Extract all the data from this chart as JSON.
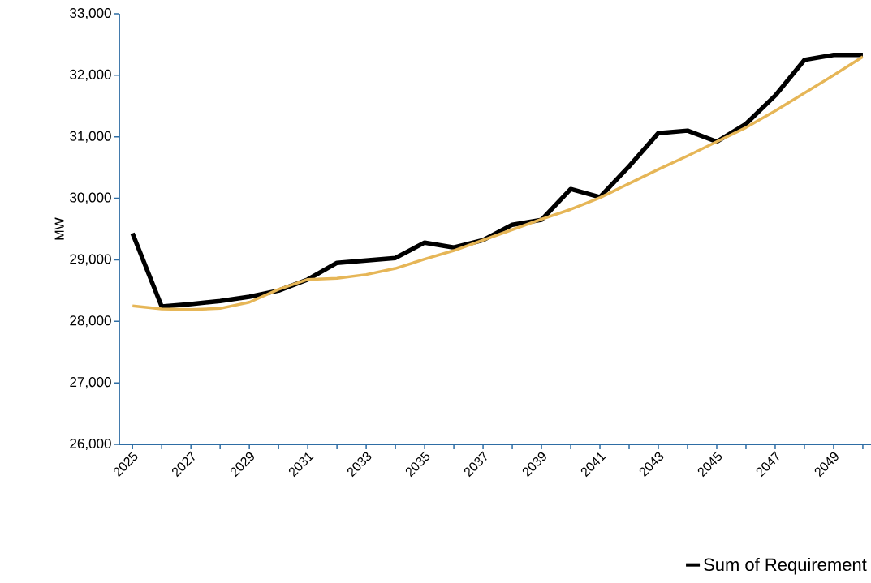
{
  "chart_data": {
    "type": "line",
    "ylabel": "MW",
    "categories": [
      "2025",
      null,
      "2027",
      null,
      "2029",
      null,
      "2031",
      null,
      "2033",
      null,
      "2035",
      null,
      "2037",
      null,
      "2039",
      null,
      "2041",
      null,
      "2043",
      null,
      "2045",
      null,
      "2047",
      null,
      "2049",
      null
    ],
    "ylim": [
      26000,
      33000
    ],
    "yticks": [
      {
        "value": 26000,
        "label": "26,000"
      },
      {
        "value": 27000,
        "label": "27,000"
      },
      {
        "value": 28000,
        "label": "28,000"
      },
      {
        "value": 29000,
        "label": "29,000"
      },
      {
        "value": 30000,
        "label": "30,000"
      },
      {
        "value": 31000,
        "label": "31,000"
      },
      {
        "value": 32000,
        "label": "32,000"
      },
      {
        "value": 33000,
        "label": "33,000"
      }
    ],
    "series": [
      {
        "name": "Sum of Requirement",
        "color": "#000000",
        "values": [
          29430,
          28240,
          28280,
          28330,
          28400,
          28500,
          28680,
          28950,
          28990,
          29030,
          29280,
          29200,
          29320,
          29570,
          29650,
          30150,
          30020,
          30520,
          31060,
          31100,
          30920,
          31210,
          31670,
          32250,
          32330,
          32330
        ]
      },
      {
        "type": "line",
        "color": "#e6b657",
        "values": [
          28250,
          28200,
          28190,
          28210,
          28310,
          28520,
          28680,
          28700,
          28760,
          28860,
          29010,
          29150,
          29320,
          29490,
          29660,
          29820,
          30010,
          30240,
          30470,
          30690,
          30920,
          31150,
          31420,
          31710,
          32000,
          32300
        ]
      }
    ],
    "legend": "bottom right"
  }
}
